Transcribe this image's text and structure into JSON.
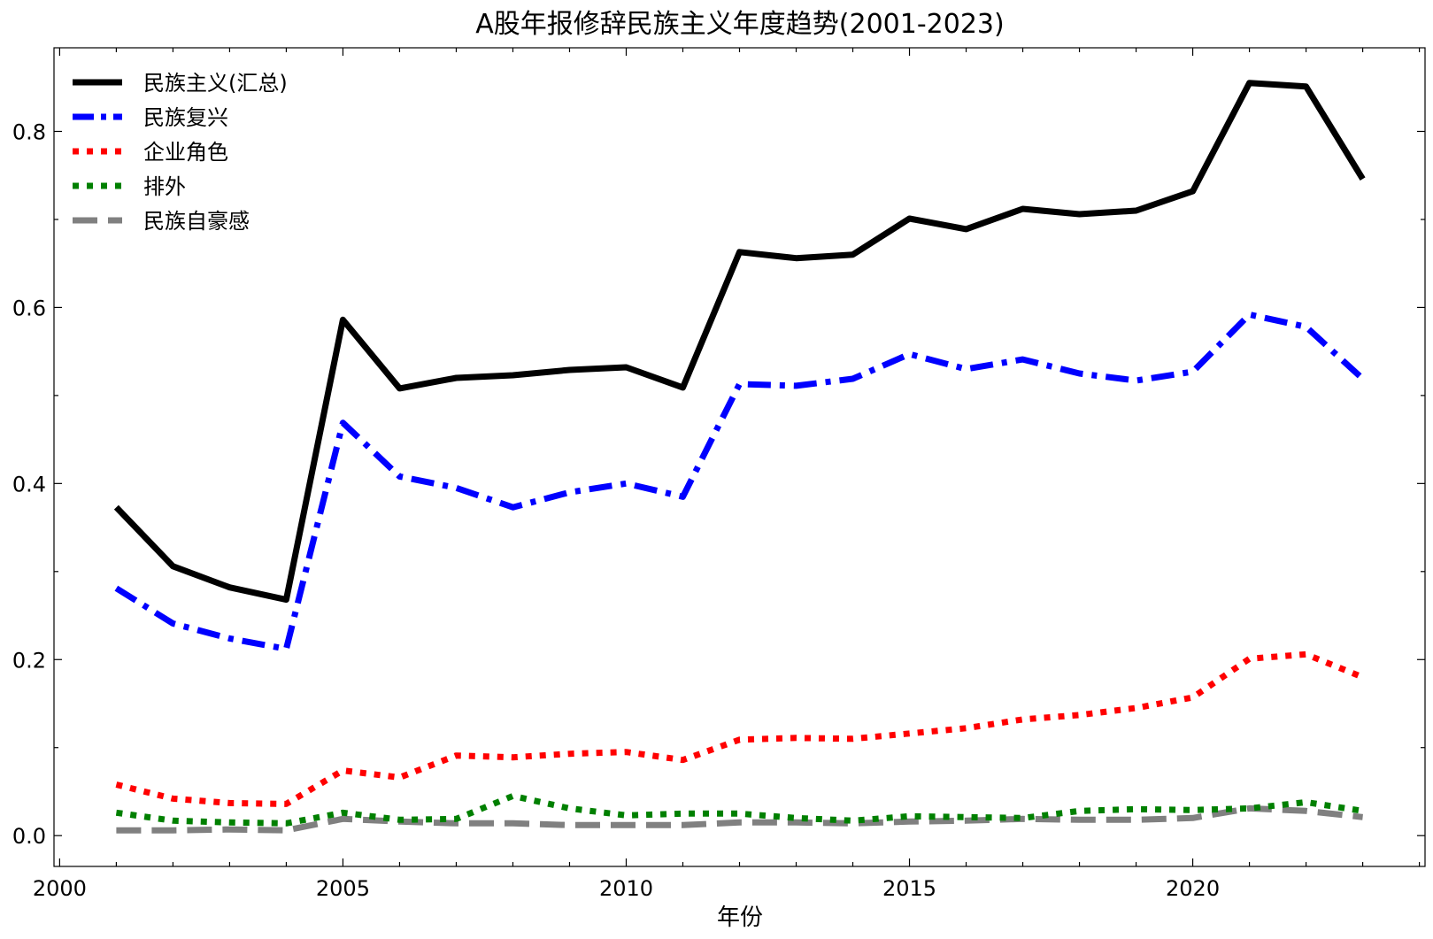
{
  "chart_data": {
    "type": "line",
    "title": "A股年报修辞民族主义年度趋势(2001-2023)",
    "xlabel": "年份",
    "ylabel": "",
    "xlim": [
      1999.9,
      2024.1
    ],
    "ylim": [
      -0.035,
      0.895
    ],
    "xticks": [
      2000,
      2005,
      2010,
      2015,
      2020
    ],
    "yticks": [
      0.0,
      0.2,
      0.4,
      0.6,
      0.8
    ],
    "xtick_labels": [
      "2000",
      "2005",
      "2010",
      "2015",
      "2020"
    ],
    "ytick_labels": [
      "0.0",
      "0.2",
      "0.4",
      "0.6",
      "0.8"
    ],
    "grid": false,
    "legend_position": "top-left",
    "x": [
      2001,
      2002,
      2003,
      2004,
      2005,
      2006,
      2007,
      2008,
      2009,
      2010,
      2011,
      2012,
      2013,
      2014,
      2015,
      2016,
      2017,
      2018,
      2019,
      2020,
      2021,
      2022,
      2023
    ],
    "series": [
      {
        "name": "民族主义(汇总)",
        "color": "#000000",
        "style": "solid",
        "values": [
          0.373,
          0.306,
          0.282,
          0.268,
          0.586,
          0.508,
          0.52,
          0.523,
          0.529,
          0.532,
          0.509,
          0.663,
          0.656,
          0.66,
          0.701,
          0.689,
          0.712,
          0.706,
          0.71,
          0.732,
          0.855,
          0.851,
          0.746
        ]
      },
      {
        "name": "民族复兴",
        "color": "#0000ff",
        "style": "dashdot",
        "values": [
          0.281,
          0.241,
          0.224,
          0.212,
          0.469,
          0.408,
          0.395,
          0.373,
          0.39,
          0.4,
          0.385,
          0.513,
          0.511,
          0.519,
          0.547,
          0.53,
          0.541,
          0.525,
          0.517,
          0.527,
          0.592,
          0.578,
          0.519
        ]
      },
      {
        "name": "企业角色",
        "color": "#ff0000",
        "style": "dotted",
        "values": [
          0.058,
          0.042,
          0.037,
          0.036,
          0.074,
          0.066,
          0.091,
          0.089,
          0.093,
          0.095,
          0.086,
          0.109,
          0.111,
          0.11,
          0.116,
          0.122,
          0.132,
          0.137,
          0.145,
          0.157,
          0.201,
          0.206,
          0.18
        ]
      },
      {
        "name": "排外",
        "color": "#008000",
        "style": "dotted",
        "values": [
          0.026,
          0.017,
          0.015,
          0.014,
          0.026,
          0.018,
          0.019,
          0.045,
          0.031,
          0.023,
          0.025,
          0.025,
          0.02,
          0.017,
          0.022,
          0.021,
          0.02,
          0.028,
          0.03,
          0.029,
          0.031,
          0.038,
          0.028
        ]
      },
      {
        "name": "民族自豪感",
        "color": "#808080",
        "style": "dashed",
        "values": [
          0.006,
          0.006,
          0.007,
          0.006,
          0.019,
          0.016,
          0.014,
          0.014,
          0.012,
          0.012,
          0.012,
          0.015,
          0.015,
          0.014,
          0.016,
          0.017,
          0.019,
          0.018,
          0.018,
          0.02,
          0.031,
          0.028,
          0.021
        ]
      }
    ]
  }
}
